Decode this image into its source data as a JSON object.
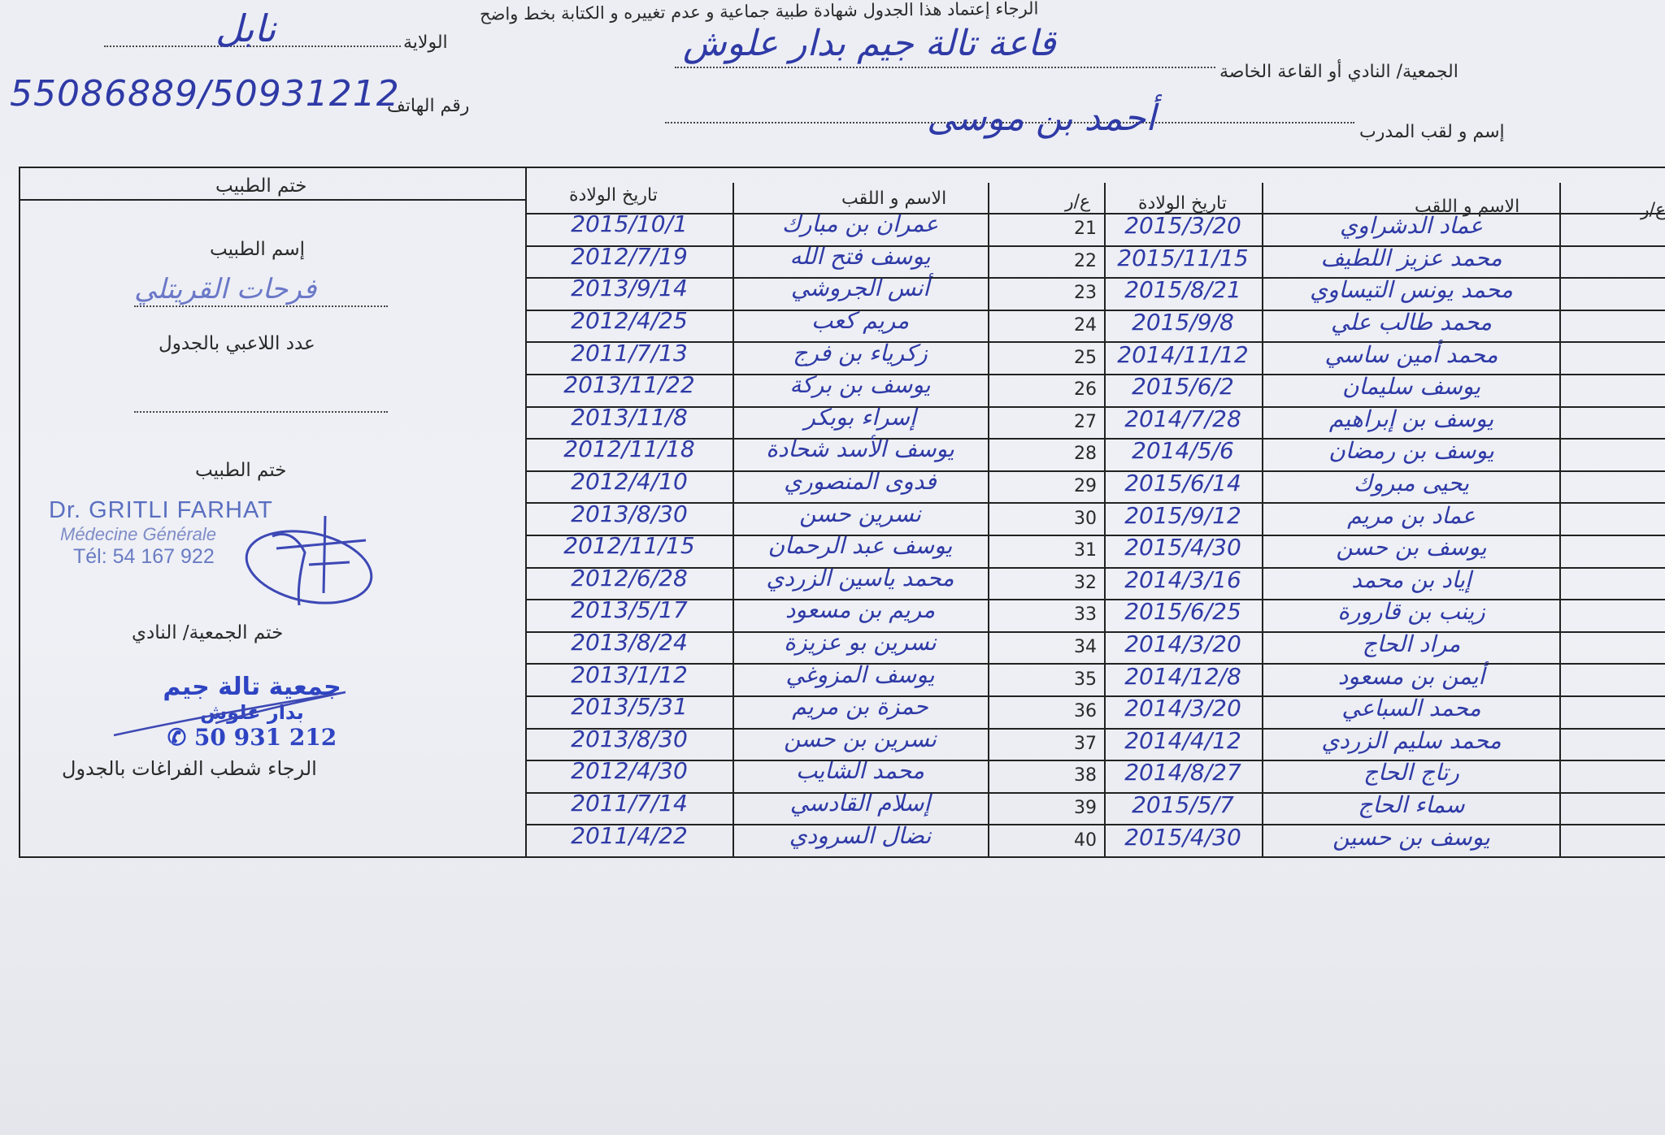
{
  "header": {
    "instruction": "الرجاء إعتماد هذا الجدول شهادة طبية جماعية  و عدم تغييره و الكتابة بخط واضح",
    "wilaya_label": "الولاية",
    "wilaya_value": "نابل",
    "phone_label": "رقم الهاتف",
    "phone_value": "55086889/50931212",
    "club_label": "الجمعية/ النادي أو القاعة الخاصة",
    "club_value": "قاعة تالة جيم بدار علوش",
    "coach_label": "إسم و لقب المدرب",
    "coach_value": "أحمد بن موسى"
  },
  "table": {
    "col_number": "ع/ر",
    "col_name": "الاسم و اللقب",
    "col_birth": "تاريخ الولادة",
    "group_a": [
      {
        "name": "عماد الدشراوي",
        "birth": "2015/3/20"
      },
      {
        "name": "محمد عزيز اللطيف",
        "birth": "2015/11/15"
      },
      {
        "name": "محمد يونس التيساوي",
        "birth": "2015/8/21"
      },
      {
        "name": "محمد طالب علي",
        "birth": "2015/9/8"
      },
      {
        "name": "محمد أمين ساسي",
        "birth": "2014/11/12"
      },
      {
        "name": "يوسف سليمان",
        "birth": "2015/6/2"
      },
      {
        "name": "يوسف بن إبراهيم",
        "birth": "2014/7/28"
      },
      {
        "name": "يوسف بن رمضان",
        "birth": "2014/5/6"
      },
      {
        "name": "يحيى مبروك",
        "birth": "2015/6/14"
      },
      {
        "name": "عماد بن مريم",
        "birth": "2015/9/12"
      },
      {
        "name": "يوسف بن حسن",
        "birth": "2015/4/30"
      },
      {
        "name": "إياد بن محمد",
        "birth": "2014/3/16"
      },
      {
        "name": "زينب بن قارورة",
        "birth": "2015/6/25"
      },
      {
        "name": "مراد الحاج",
        "birth": "2014/3/20"
      },
      {
        "name": "أيمن بن مسعود",
        "birth": "2014/12/8"
      },
      {
        "name": "محمد السباعي",
        "birth": "2014/3/20"
      },
      {
        "name": "محمد سليم الزردي",
        "birth": "2014/4/12"
      },
      {
        "name": "رتاج الحاج",
        "birth": "2014/8/27"
      },
      {
        "name": "سماء الحاج",
        "birth": "2015/5/7"
      },
      {
        "name": "يوسف بن حسين",
        "birth": "2015/4/30"
      }
    ],
    "group_b": [
      {
        "num": "21",
        "name": "عمران بن مبارك",
        "birth": "2015/10/1"
      },
      {
        "num": "22",
        "name": "يوسف فتح الله",
        "birth": "2012/7/19"
      },
      {
        "num": "23",
        "name": "أنس الجروشي",
        "birth": "2013/9/14"
      },
      {
        "num": "24",
        "name": "مريم كعب",
        "birth": "2012/4/25"
      },
      {
        "num": "25",
        "name": "زكرياء بن فرج",
        "birth": "2011/7/13"
      },
      {
        "num": "26",
        "name": "يوسف بن بركة",
        "birth": "2013/11/22"
      },
      {
        "num": "27",
        "name": "إسراء بوبكر",
        "birth": "2013/11/8"
      },
      {
        "num": "28",
        "name": "يوسف الأسد شحادة",
        "birth": "2012/11/18"
      },
      {
        "num": "29",
        "name": "فدوى المنصوري",
        "birth": "2012/4/10"
      },
      {
        "num": "30",
        "name": "نسرين حسن",
        "birth": "2013/8/30"
      },
      {
        "num": "31",
        "name": "يوسف عبد الرحمان",
        "birth": "2012/11/15"
      },
      {
        "num": "32",
        "name": "محمد ياسين الزردي",
        "birth": "2012/6/28"
      },
      {
        "num": "33",
        "name": "مريم بن مسعود",
        "birth": "2013/5/17"
      },
      {
        "num": "34",
        "name": "نسرين بو عزيزة",
        "birth": "2013/8/24"
      },
      {
        "num": "35",
        "name": "يوسف المزوغي",
        "birth": "2013/1/12"
      },
      {
        "num": "36",
        "name": "حمزة بن مريم",
        "birth": "2013/5/31"
      },
      {
        "num": "37",
        "name": "نسرين بن حسن",
        "birth": "2013/8/30"
      },
      {
        "num": "38",
        "name": "محمد الشايب",
        "birth": "2012/4/30"
      },
      {
        "num": "39",
        "name": "إسلام القادسي",
        "birth": "2011/7/14"
      },
      {
        "num": "40",
        "name": "نضال السرودي",
        "birth": "2011/4/22"
      }
    ]
  },
  "doctor_box": {
    "title": "ختم الطبيب",
    "doctor_name_label": "إسم الطبيب",
    "doctor_name_value": "فرحات القريتلي",
    "players_count_label": "عدد اللاعبي بالجدول",
    "doctor_stamp_label": "ختم الطبيب",
    "doctor_stamp": {
      "line1": "Dr. GRITLI FARHAT",
      "line2": "Médecine Générale",
      "line3": "Tél: 54 167 922"
    },
    "club_stamp_label": "ختم الجمعية/ النادي",
    "club_stamp": {
      "line1": "جمعية تالة جيم",
      "line2": "بدار علوش",
      "line3": "50 931 212"
    },
    "footer_note": "الرجاء شطب الفراغات بالجدول"
  },
  "colors": {
    "ink": "#2f3aa6",
    "stamp": "#3e55b8",
    "paper": "#eef0f5"
  }
}
